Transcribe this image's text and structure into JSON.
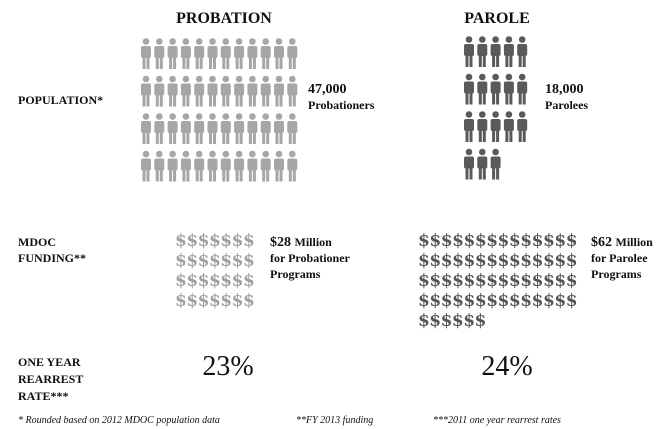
{
  "columns": [
    {
      "title": "PROBATION",
      "population": {
        "number": "47,000",
        "label": "Probationers"
      },
      "funding": {
        "amount": "$28",
        "unit": "Million",
        "lines": [
          "for Probationer",
          "Programs"
        ]
      },
      "rearrest": "23%"
    },
    {
      "title": "PAROLE",
      "population": {
        "number": "18,000",
        "label": "Parolees"
      },
      "funding": {
        "amount": "$62",
        "unit": "Million",
        "lines": [
          "for Parolee",
          "Programs"
        ]
      },
      "rearrest": "24%"
    }
  ],
  "rows": {
    "population": [
      "POPULATION*"
    ],
    "funding": [
      "MDOC",
      "FUNDING**"
    ],
    "rearrest": [
      "ONE YEAR",
      "REARREST",
      "RATE***"
    ]
  },
  "footnotes": [
    "* Rounded based on 2012 MDOC population data",
    "**FY 2013 funding",
    "***2011 one year rearrest rates"
  ]
}
